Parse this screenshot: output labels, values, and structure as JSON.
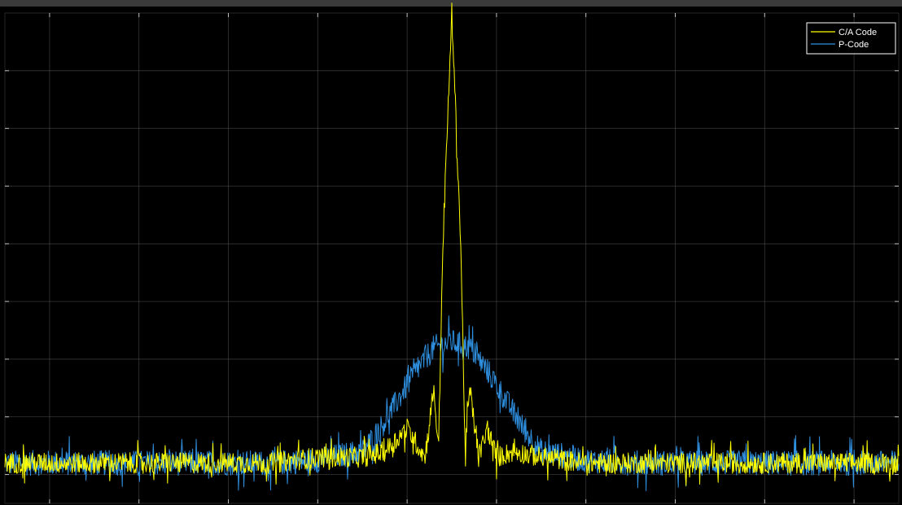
{
  "chart_data": {
    "type": "line",
    "title": "",
    "xlabel": "",
    "ylabel": "",
    "xlim": [
      -100,
      100
    ],
    "ylim": [
      -5,
      80
    ],
    "grid": true,
    "legend_position": "top-right",
    "x_ticks": [
      -90,
      -70,
      -50,
      -30,
      -10,
      10,
      30,
      50,
      70,
      90
    ],
    "y_ticks": [
      0,
      10,
      20,
      30,
      40,
      50,
      60,
      70
    ],
    "background_color": "#000000",
    "frame_color": "#3a3a3a",
    "grid_color": "#5a5a5a",
    "series": [
      {
        "name": "C/A Code",
        "color": "#ffff00",
        "x": [
          -100,
          -90,
          -80,
          -70,
          -60,
          -50,
          -40,
          -30,
          -20,
          -15,
          -10,
          -6,
          -4,
          -3,
          -2,
          -1,
          0,
          1,
          2,
          3,
          4,
          6,
          8,
          10,
          14,
          20,
          30,
          40,
          50,
          60,
          70,
          80,
          90,
          100
        ],
        "values": [
          2,
          2,
          2,
          2,
          2,
          2,
          2,
          3,
          3,
          4,
          8,
          3,
          15,
          4,
          40,
          60,
          80,
          60,
          40,
          4,
          15,
          3,
          8,
          3,
          4,
          3,
          2,
          2,
          2,
          2,
          2,
          2,
          2,
          2
        ],
        "noise": 1.8
      },
      {
        "name": "P-Code",
        "color": "#2f8fdf",
        "x": [
          -100,
          -80,
          -60,
          -40,
          -30,
          -20,
          -16,
          -12,
          -8,
          -4,
          0,
          4,
          8,
          12,
          16,
          20,
          30,
          40,
          60,
          80,
          100
        ],
        "values": [
          2,
          2,
          2,
          2,
          2.5,
          4,
          8,
          13,
          18,
          22,
          23,
          22,
          18,
          13,
          8,
          4,
          2.5,
          2,
          2,
          2,
          2
        ],
        "noise": 2.2
      }
    ]
  }
}
